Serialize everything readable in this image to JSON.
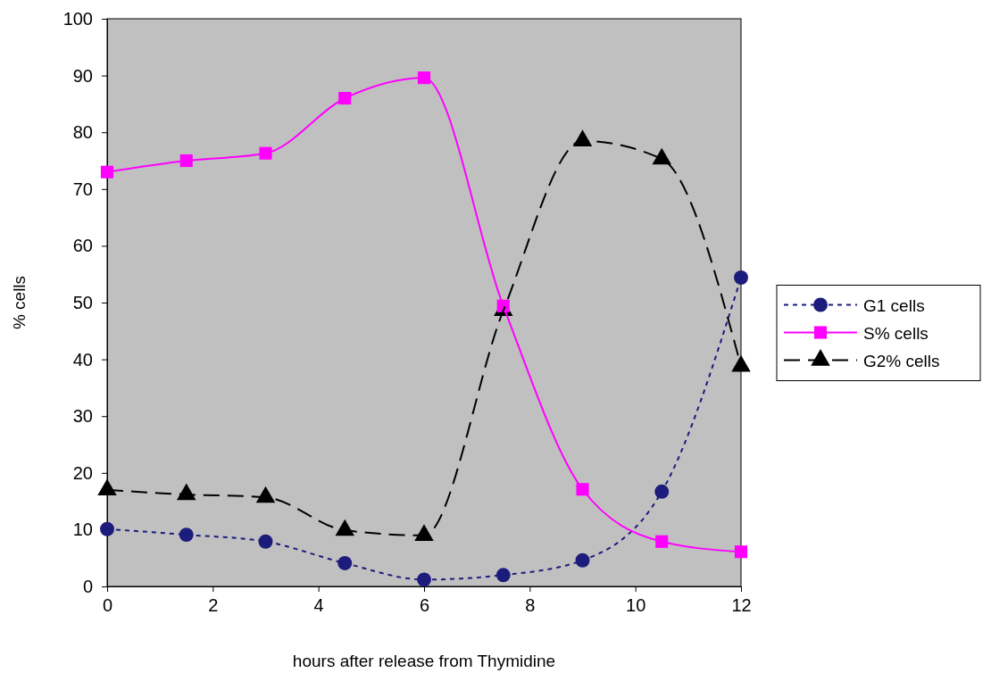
{
  "chart_data": {
    "type": "line",
    "xlabel": "hours after release from Thymidine",
    "ylabel": "% cells",
    "x": [
      0,
      1.5,
      3,
      4.5,
      6,
      7.5,
      9,
      10.5,
      12
    ],
    "xlim": [
      0,
      12
    ],
    "xticks": [
      0,
      2,
      4,
      6,
      8,
      10,
      12
    ],
    "ylim": [
      0,
      100
    ],
    "yticks": [
      0,
      10,
      20,
      30,
      40,
      50,
      60,
      70,
      80,
      90,
      100
    ],
    "grid": false,
    "legend": "right",
    "series": [
      {
        "name": "G1 cells",
        "color": "#1c1c7c",
        "marker": "circle",
        "line_style": "dotted",
        "values": [
          10.1,
          9.1,
          7.9,
          4.1,
          1.2,
          2.0,
          4.6,
          16.7,
          54.4
        ]
      },
      {
        "name": "S% cells",
        "color": "#ff00ff",
        "marker": "square",
        "line_style": "solid",
        "values": [
          73,
          75,
          76.3,
          86,
          89.6,
          49.4,
          17.1,
          7.9,
          6.1
        ]
      },
      {
        "name": "G2% cells",
        "color": "#000000",
        "marker": "triangle",
        "line_style": "dashed",
        "values": [
          17,
          16.2,
          15.7,
          9.9,
          9,
          48.6,
          78.5,
          75.3,
          38.8
        ]
      }
    ]
  }
}
